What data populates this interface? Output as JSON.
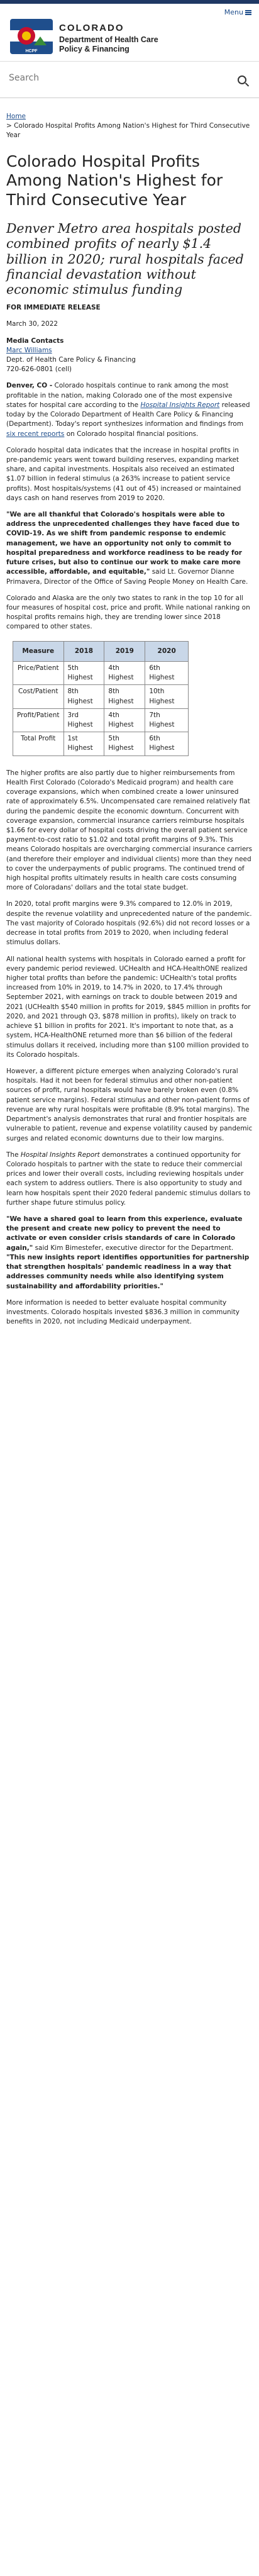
{
  "header": {
    "menu_label": "Menu",
    "state": "COLORADO",
    "dept_line1": "Department of Health Care",
    "dept_line2": "Policy & Financing",
    "logo_text": "HCPF"
  },
  "search": {
    "placeholder": "Search"
  },
  "breadcrumb": {
    "home": "Home",
    "current": "Colorado Hospital Profits Among Nation's Highest for Third Consecutive Year"
  },
  "article": {
    "title": "Colorado Hospital Profits Among Nation's Highest for Third Consecutive Year",
    "subtitle": "Denver Metro area hospitals posted combined profits of nearly $1.4 billion in 2020; rural hospitals faced financial devastation without economic stimulus funding",
    "release": "FOR IMMEDIATE RELEASE",
    "date": "March 30, 2022",
    "media_label": "Media Contacts",
    "contact_name": "Marc Williams",
    "contact_org": "Dept. of Health Care Policy & Financing",
    "contact_phone": "720-626-0801 (cell)",
    "p1_place": "Denver, CO -",
    "p1_text_a": " Colorado hospitals continue to rank among the most profitable in the  nation, making Colorado one of the most expensive states for hospital care according to the ",
    "p1_link": "Hospital Insights Report",
    "p1_text_b": " released today by the Colorado Department of Health Care Policy & Financing (Department). Today's report synthesizes information and findings from ",
    "p1_link2": "six recent reports",
    "p1_text_c": " on Colorado hospital financial positions.",
    "p2": "Colorado hospital data indicates that the increase in hospital profits in pre-pandemic years went toward building reserves, expanding market share, and capital investments. Hospitals also received an estimated $1.07 billion in federal stimulus (a 263% increase to patient service profits). Most hospitals/systems (41 out of 45) increased or maintained days cash on hand reserves from 2019 to 2020.",
    "p3_quote": "\"We are all thankful that Colorado's hospitals were able to address the unprecedented challenges they have faced due to COVID-19. As we shift from pandemic response to endemic management, we have an opportunity not only to commit to hospital preparedness and workforce readiness to be ready for future crises, but also to continue our work to make care more accessible, affordable, and equitable,\"",
    "p3_rest": " said Lt. Governor Dianne Primavera, Director of the Office of Saving People Money on Health Care.",
    "p4": "Colorado and Alaska are the only two states to rank in the top 10 for all four measures of hospital cost, price and profit. While national ranking on hospital profits remains high, they are trending lower since 2018 compared to other states.",
    "p5": "The higher profits are also partly due to higher reimbursements from Health First Colorado (Colorado's Medicaid program) and health care coverage expansions, which when combined create a lower uninsured rate of approximately 6.5%. Uncompensated care remained relatively flat during the pandemic despite the economic downturn. Concurrent with coverage expansion, commercial insurance carriers reimburse hospitals $1.66 for every dollar of hospital costs driving the overall patient service payment-to-cost ratio to $1.02 and total profit margins of 9.3%. This means Colorado hospitals are overcharging commercial insurance carriers (and therefore their employer and individual clients) more than they need to cover the underpayments of public programs. The continued trend of high hospital profits ultimately results in health care costs consuming more of Coloradans' dollars and the total state budget.",
    "p6": "In 2020, total profit margins were 9.3% compared to 12.0% in 2019, despite the revenue volatility and unprecedented nature of the pandemic. The vast majority of Colorado hospitals (92.6%) did not record losses or a decrease in total profits from 2019 to 2020, when including federal stimulus dollars.",
    "p7": "All national health systems with hospitals in Colorado earned a profit for every pandemic period reviewed. UCHealth and HCA-HealthONE realized higher total profits than before the pandemic: UCHealth's total profits increased from 10% in 2019, to 14.7% in 2020, to 17.4% through September 2021, with earnings on track to double between 2019 and 2021 (UCHealth $540 million in profits for 2019, $845 million in profits for 2020, and 2021 through Q3, $878 million in profits), likely on track to achieve $1 billion in profits for 2021. It's important to note that, as a system, HCA-HealthONE returned more than $6 billion of the federal stimulus dollars it received, including more than $100 million provided to its Colorado hospitals.",
    "p8": "However, a different picture emerges when analyzing Colorado's rural hospitals. Had it not been for federal stimulus and other non-patient sources of profit, rural hospitals would have barely broken even (0.8% patient service margins). Federal stimulus and other non-patient forms of revenue are why rural hospitals were profitable (8.9% total margins). The Department's analysis demonstrates that rural and frontier hospitals are vulnerable to patient, revenue and expense volatility caused by pandemic surges and related economic downturns due to their low margins.",
    "p9_link": "Hospital Insights Report",
    "p9_text": " demonstrates a continued opportunity for Colorado hospitals to partner with the state to reduce their commercial prices and lower their overall costs, including reviewing hospitals under each system to address outliers. There is also opportunity to study and learn how hospitals spent their 2020 federal pandemic stimulus dollars to further shape future stimulus policy.",
    "p9_the": "The ",
    "p10_quote_a": "\"We have a shared goal to learn from this experience, evaluate the present and create new policy to prevent the need to activate or even consider crisis standards of care in Colorado again,\"",
    "p10_mid": " said Kim Bimestefer, executive director for the Department. ",
    "p10_quote_b": "\"This new insights report identifies opportunities for partnership that strengthen hospitals' pandemic readiness in a way that addresses community needs while also identifying system sustainability and affordability priorities.\"",
    "p11": "More information is needed to better evaluate hospital community investments. Colorado hospitals invested $836.3 million in community benefits in 2020, not including Medicaid underpayment."
  },
  "table": {
    "headers": [
      "Measure",
      "2018",
      "2019",
      "2020"
    ],
    "rows": [
      [
        "Price/Patient",
        "5th Highest",
        "4th Highest",
        "6th Highest"
      ],
      [
        "Cost/Patient",
        "8th Highest",
        "8th Highest",
        "10th Highest"
      ],
      [
        "Profit/Patient",
        "3rd Highest",
        "4th Highest",
        "7th Highest"
      ],
      [
        "Total Profit",
        "1st Highest",
        "5th Highest",
        "6th Highest"
      ]
    ]
  }
}
